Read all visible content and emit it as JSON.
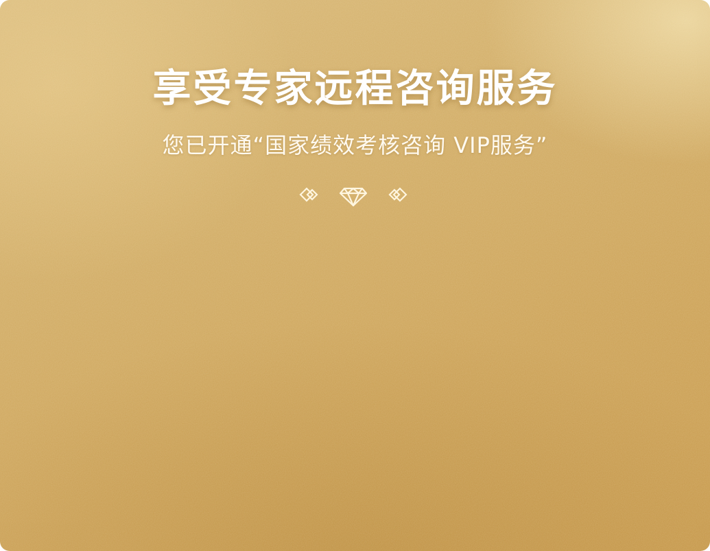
{
  "header": {
    "title": "享受专家远程咨询服务",
    "subtitle": "您已开通“国家绩效考核咨询 VIP服务”"
  },
  "divider": {
    "center_icon": "diamond-icon",
    "side_ornament_icon": "knot-ornament-icon"
  },
  "colors": {
    "background_gold": "#d2ad66",
    "text": "#ffffff"
  }
}
